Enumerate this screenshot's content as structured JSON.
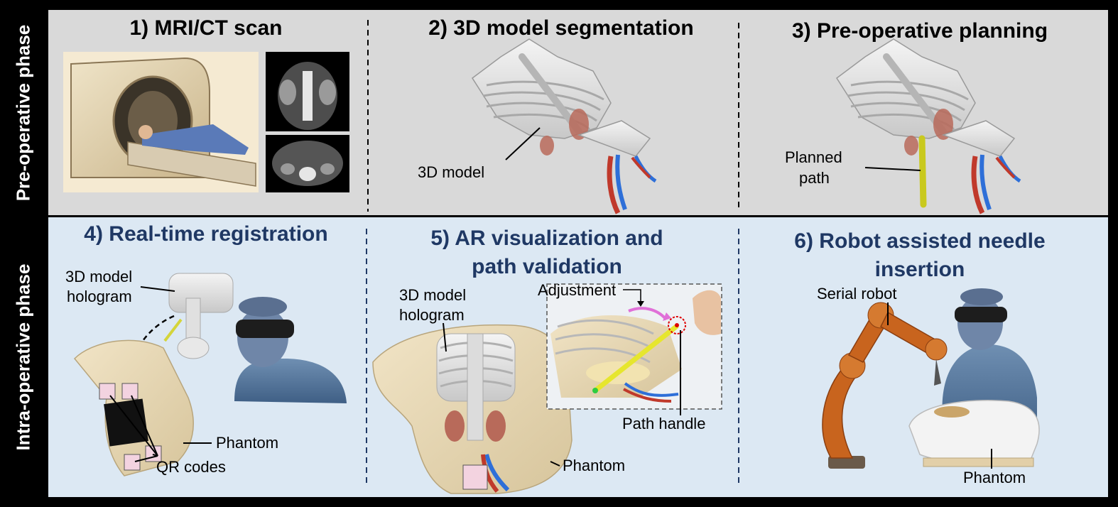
{
  "phases": {
    "pre": "Pre-operative phase",
    "intra": "Intra-operative phase"
  },
  "steps": [
    {
      "title": "1) MRI/CT scan"
    },
    {
      "title": "2) 3D model segmentation"
    },
    {
      "title": "3) Pre-operative planning"
    },
    {
      "title": "4) Real-time registration"
    },
    {
      "title_line1": "5) AR visualization and",
      "title_line2": "path validation"
    },
    {
      "title_line1": "6) Robot assisted needle",
      "title_line2": "insertion"
    }
  ],
  "labels": {
    "model_3d": "3D model",
    "planned_path_1": "Planned",
    "planned_path_2": "path",
    "hologram_1": "3D model",
    "hologram_2": "hologram",
    "phantom": "Phantom",
    "qr_codes": "QR codes",
    "adjustment": "Adjustment",
    "path_handle": "Path handle",
    "serial_robot": "Serial robot"
  },
  "colors": {
    "top_bg": "#d9d9d9",
    "bottom_bg": "#dce8f3",
    "title_blue": "#1f3864",
    "needle": "#e6e62e",
    "robot": "#c8641e"
  }
}
